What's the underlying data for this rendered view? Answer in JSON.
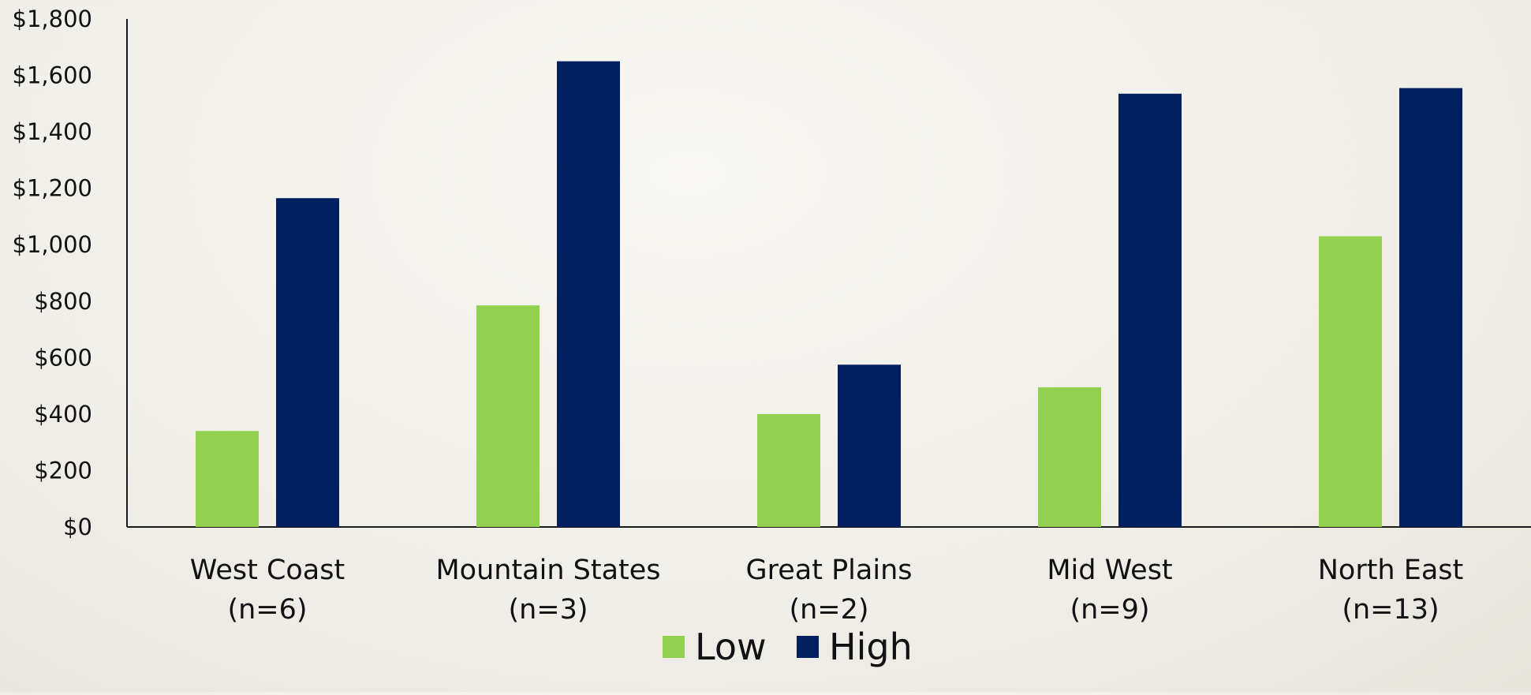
{
  "chart_data": {
    "type": "bar",
    "title": "",
    "xlabel": "",
    "ylabel": "",
    "categories": [
      [
        "West Coast",
        "(n=6)"
      ],
      [
        "Mountain States",
        "(n=3)"
      ],
      [
        "Great Plains",
        "(n=2)"
      ],
      [
        "Mid West",
        "(n=9)"
      ],
      [
        "North East",
        "(n=13)"
      ]
    ],
    "series": [
      {
        "name": "Low",
        "color": "#92d050",
        "values": [
          340,
          785,
          400,
          495,
          1030
        ]
      },
      {
        "name": "High",
        "color": "#002060",
        "values": [
          1165,
          1650,
          575,
          1535,
          1555
        ]
      }
    ],
    "ylim": [
      0,
      1800
    ],
    "ytick_labels": [
      "$0",
      "$200",
      "$400",
      "$600",
      "$800",
      "$1,000",
      "$1,200",
      "$1,400",
      "$1,600",
      "$1,800"
    ],
    "grid": false,
    "legend_position": "bottom-center"
  }
}
